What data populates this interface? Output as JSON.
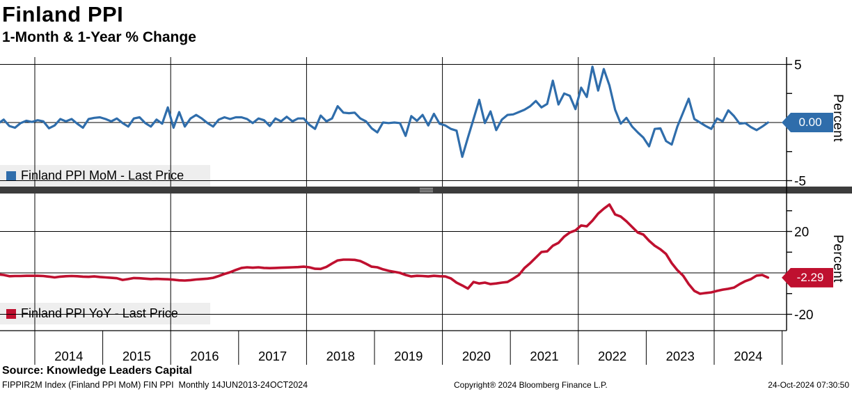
{
  "header": {
    "title": "Finland PPI",
    "subtitle": "1-Month & 1-Year % Change"
  },
  "top_panel": {
    "legend": "Finland PPI MoM - Last Price",
    "badge": "0.00",
    "axis_label": "Percent"
  },
  "bottom_panel": {
    "legend": "Finland PPI YoY - Last Price",
    "badge": "-2.29",
    "axis_label": "Percent"
  },
  "x_axis": {
    "years": [
      "2014",
      "2015",
      "2016",
      "2017",
      "2018",
      "2019",
      "2020",
      "2021",
      "2022",
      "2023",
      "2024"
    ],
    "tick_years": [
      2014,
      2015,
      2016,
      2017,
      2018,
      2019,
      2020,
      2021,
      2022,
      2023,
      2024,
      2025
    ],
    "gridline_years": [
      2014,
      2016,
      2018,
      2020,
      2022,
      2024
    ]
  },
  "footer": {
    "source": "Source: Knowledge Leaders Capital",
    "ticker_info": "FIPPIR2M Index (Finland PPI MoM) FIN PPI  Monthly 14JUN2013-24OCT2024",
    "copyright": "Copyright® 2024 Bloomberg Finance L.P.",
    "timestamp": "24-Oct-2024 07:30:50"
  },
  "chart_data": [
    {
      "type": "line",
      "name": "Finland PPI MoM - Last Price",
      "color": "#2f6dab",
      "ylabel": "Percent",
      "start": "2013-06",
      "frequency": "monthly",
      "last_price": 0.0,
      "ylim": [
        -5.6,
        5.6
      ],
      "gridlines": [
        5,
        0,
        -5
      ],
      "ticks": [
        5,
        2.5,
        0,
        -2.5,
        -5
      ],
      "labeled_ticks": [
        {
          "v": 5,
          "label": "5"
        },
        {
          "v": -5,
          "label": "-5"
        }
      ],
      "values": [
        -0.1,
        0.25,
        -0.3,
        -0.45,
        -0.05,
        0.15,
        0.05,
        0.2,
        0.1,
        -0.5,
        -0.25,
        0.3,
        0.1,
        0.3,
        -0.1,
        -0.45,
        0.3,
        0.4,
        0.45,
        0.3,
        0.1,
        0.35,
        -0.05,
        -0.35,
        0.35,
        0.45,
        -0.05,
        -0.35,
        0.25,
        -0.1,
        1.3,
        -0.45,
        0.9,
        -0.35,
        0.35,
        0.65,
        0.35,
        -0.05,
        -0.35,
        0.25,
        0.45,
        0.3,
        0.45,
        0.45,
        0.3,
        -0.05,
        0.35,
        0.2,
        -0.3,
        0.35,
        0.1,
        0.5,
        0.1,
        0.35,
        0.35,
        -0.2,
        -0.55,
        0.6,
        0.1,
        0.35,
        1.4,
        0.85,
        0.8,
        0.85,
        0.35,
        0.1,
        -0.5,
        -0.85,
        0.0,
        -0.05,
        0.0,
        -0.05,
        -1.15,
        0.55,
        0.15,
        0.65,
        -0.25,
        0.75,
        -0.1,
        -0.25,
        -0.55,
        -0.7,
        -2.95,
        -1.3,
        0.3,
        1.95,
        -0.05,
        0.95,
        -0.65,
        0.25,
        0.65,
        0.7,
        0.9,
        1.1,
        1.4,
        1.85,
        1.3,
        1.6,
        3.6,
        1.55,
        2.5,
        2.3,
        1.15,
        3.0,
        2.2,
        4.8,
        2.75,
        4.6,
        3.2,
        1.1,
        -0.1,
        0.4,
        -0.35,
        -0.85,
        -1.3,
        -2.05,
        -0.55,
        -0.5,
        -1.6,
        -1.9,
        -0.35,
        0.85,
        2.05,
        0.3,
        0.0,
        -0.3,
        -0.55,
        0.35,
        0.1,
        1.05,
        0.55,
        -0.1,
        -0.05,
        -0.4,
        -0.65,
        -0.35,
        0.0
      ]
    },
    {
      "type": "line",
      "name": "Finland PPI YoY - Last Price",
      "color": "#bf102f",
      "ylabel": "Percent",
      "start": "2013-06",
      "frequency": "monthly",
      "last_price": -2.29,
      "ylim": [
        -28,
        38.5
      ],
      "gridlines": [
        20,
        0,
        -20
      ],
      "ticks": [
        30,
        20,
        10,
        0,
        -10,
        -20
      ],
      "labeled_ticks": [
        {
          "v": 20,
          "label": "20"
        },
        {
          "v": -20,
          "label": "-20"
        }
      ],
      "values": [
        -0.7,
        -1.0,
        -1.6,
        -1.5,
        -1.5,
        -1.4,
        -1.4,
        -1.4,
        -1.5,
        -1.8,
        -2.2,
        -1.8,
        -1.6,
        -1.5,
        -1.6,
        -1.8,
        -1.9,
        -1.7,
        -2.0,
        -2.2,
        -2.4,
        -2.6,
        -3.4,
        -3.0,
        -2.5,
        -2.6,
        -2.8,
        -3.0,
        -2.9,
        -3.0,
        -3.1,
        -3.3,
        -3.6,
        -3.7,
        -3.5,
        -3.2,
        -3.0,
        -2.8,
        -2.4,
        -1.5,
        -0.5,
        0.3,
        1.4,
        2.4,
        2.7,
        2.5,
        2.7,
        2.4,
        2.3,
        2.4,
        2.5,
        2.6,
        2.7,
        2.8,
        3.0,
        2.7,
        2.0,
        1.9,
        2.9,
        4.5,
        6.0,
        6.4,
        6.4,
        6.3,
        5.7,
        4.4,
        3.0,
        2.7,
        1.7,
        1.0,
        0.5,
        0.0,
        -1.0,
        -1.7,
        -1.4,
        -1.5,
        -1.7,
        -1.4,
        -1.6,
        -1.7,
        -2.7,
        -4.7,
        -6.1,
        -7.6,
        -4.4,
        -5.1,
        -4.7,
        -5.4,
        -5.1,
        -4.7,
        -4.4,
        -2.8,
        -1.0,
        2.35,
        4.7,
        7.4,
        10.1,
        10.4,
        13.1,
        14.5,
        17.5,
        19.5,
        20.5,
        22.9,
        22.5,
        25.2,
        28.6,
        31.0,
        33.0,
        28.2,
        27.2,
        24.9,
        22.2,
        19.5,
        18.5,
        15.5,
        13.1,
        11.4,
        9.1,
        4.7,
        1.3,
        -1.3,
        -5.4,
        -8.7,
        -10.1,
        -9.7,
        -9.4,
        -8.7,
        -8.1,
        -7.7,
        -7.1,
        -5.4,
        -4.0,
        -3.0,
        -1.3,
        -1.0,
        -2.29
      ]
    }
  ]
}
